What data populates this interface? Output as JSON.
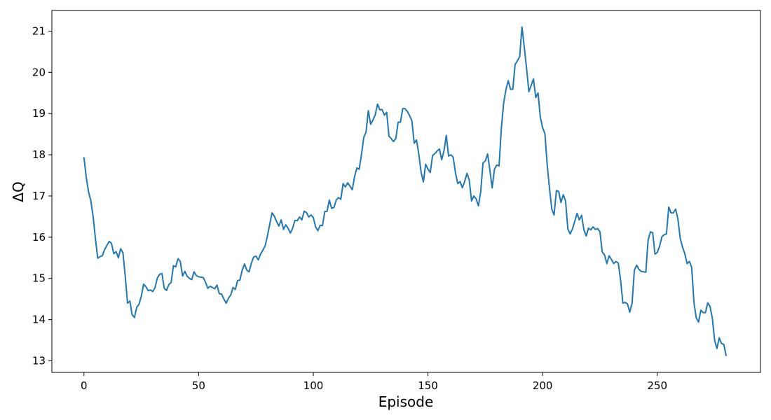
{
  "chart_data": {
    "type": "line",
    "title": "",
    "xlabel": "Episode",
    "ylabel": "ΔQ",
    "xlim": [
      -14,
      295
    ],
    "ylim": [
      12.72,
      21.5
    ],
    "xticks": [
      0,
      50,
      100,
      150,
      200,
      250
    ],
    "yticks": [
      13,
      14,
      15,
      16,
      17,
      18,
      19,
      20,
      21
    ],
    "grid": false,
    "legend": "none",
    "line_color": "#1f77b4",
    "series": [
      {
        "x": [
          0,
          1,
          2,
          3,
          4,
          5,
          6,
          7,
          8,
          9,
          10,
          11,
          12,
          13,
          14,
          15,
          16,
          17,
          18,
          19,
          20,
          21,
          22,
          23,
          24,
          25,
          26,
          27,
          28,
          29,
          30,
          31,
          32,
          33,
          34,
          35,
          36,
          37,
          38,
          39,
          40,
          41,
          42,
          43,
          44,
          45,
          46,
          47,
          48,
          49,
          50,
          51,
          52,
          53,
          54,
          55,
          56,
          57,
          58,
          59,
          60,
          61,
          62,
          63,
          64,
          65,
          66,
          67,
          68,
          69,
          70,
          71,
          72,
          73,
          74,
          75,
          76,
          77,
          78,
          79,
          80,
          81,
          82,
          83,
          84,
          85,
          86,
          87,
          88,
          89,
          90,
          91,
          92,
          93,
          94,
          95,
          96,
          97,
          98,
          99,
          100,
          101,
          102,
          103,
          104,
          105,
          106,
          107,
          108,
          109,
          110,
          111,
          112,
          113,
          114,
          115,
          116,
          117,
          118,
          119,
          120,
          121,
          122,
          123,
          124,
          125,
          126,
          127,
          128,
          129,
          130,
          131,
          132,
          133,
          134,
          135,
          136,
          137,
          138,
          139,
          140,
          141,
          142,
          143,
          144,
          145,
          146,
          147,
          148,
          149,
          150,
          151,
          152,
          153,
          154,
          155,
          156,
          157,
          158,
          159,
          160,
          161,
          162,
          163,
          164,
          165,
          166,
          167,
          168,
          169,
          170,
          171,
          172,
          173,
          174,
          175,
          176,
          177,
          178,
          179,
          180,
          181,
          182,
          183,
          184,
          185,
          186,
          187,
          188,
          189,
          190,
          191,
          192,
          193,
          194,
          195,
          196,
          197,
          198,
          199,
          200,
          201,
          202,
          203,
          204,
          205,
          206,
          207,
          208,
          209,
          210,
          211,
          212,
          213,
          214,
          215,
          216,
          217,
          218,
          219,
          220,
          221,
          222,
          223,
          224,
          225,
          226,
          227,
          228,
          229,
          230,
          231,
          232,
          233,
          234,
          235,
          236,
          237,
          238,
          239,
          240,
          241,
          242,
          243,
          244,
          245,
          246,
          247,
          248,
          249,
          250,
          251,
          252,
          253,
          254,
          255,
          256,
          257,
          258,
          259,
          260,
          261,
          262,
          263,
          264,
          265,
          266,
          267,
          268,
          269,
          270,
          271,
          272,
          273,
          274,
          275,
          276,
          277,
          278,
          279,
          280
        ],
        "y": [
          17.93,
          17.45,
          17.1,
          16.88,
          16.5,
          15.96,
          15.49,
          15.53,
          15.55,
          15.7,
          15.8,
          15.9,
          15.85,
          15.6,
          15.65,
          15.5,
          15.72,
          15.62,
          15.05,
          14.4,
          14.45,
          14.12,
          14.05,
          14.3,
          14.37,
          14.57,
          14.86,
          14.8,
          14.7,
          14.72,
          14.68,
          14.78,
          15.01,
          15.1,
          15.12,
          14.76,
          14.71,
          14.85,
          14.9,
          15.31,
          15.28,
          15.48,
          15.41,
          15.06,
          15.17,
          15.05,
          15.0,
          14.97,
          15.16,
          15.07,
          15.04,
          15.03,
          15.02,
          14.91,
          14.76,
          14.81,
          14.78,
          14.75,
          14.84,
          14.63,
          14.62,
          14.5,
          14.4,
          14.52,
          14.6,
          14.78,
          14.73,
          14.95,
          14.96,
          15.2,
          15.35,
          15.2,
          15.16,
          15.37,
          15.52,
          15.54,
          15.45,
          15.59,
          15.68,
          15.79,
          16.03,
          16.31,
          16.59,
          16.51,
          16.38,
          16.27,
          16.42,
          16.19,
          16.3,
          16.22,
          16.1,
          16.22,
          16.41,
          16.4,
          16.49,
          16.42,
          16.63,
          16.6,
          16.49,
          16.54,
          16.48,
          16.25,
          16.16,
          16.29,
          16.28,
          16.62,
          16.63,
          16.9,
          16.7,
          16.72,
          16.9,
          16.96,
          16.92,
          17.3,
          17.22,
          17.32,
          17.24,
          17.15,
          17.47,
          17.68,
          17.65,
          18.0,
          18.42,
          18.55,
          19.07,
          18.74,
          18.84,
          18.97,
          19.23,
          19.09,
          19.1,
          18.96,
          19.03,
          18.45,
          18.39,
          18.32,
          18.4,
          18.79,
          18.79,
          19.12,
          19.12,
          19.05,
          18.95,
          18.82,
          18.28,
          18.36,
          18.02,
          17.58,
          17.34,
          17.77,
          17.65,
          17.57,
          17.98,
          18.03,
          18.09,
          18.14,
          17.88,
          18.1,
          18.47,
          17.97,
          18.0,
          17.94,
          17.56,
          17.3,
          17.35,
          17.2,
          17.35,
          17.55,
          17.39,
          16.88,
          17.0,
          16.93,
          16.76,
          17.1,
          17.8,
          17.85,
          18.02,
          17.63,
          17.2,
          17.65,
          17.75,
          17.73,
          18.64,
          19.25,
          19.58,
          19.8,
          19.59,
          19.59,
          20.19,
          20.28,
          20.38,
          21.1,
          20.61,
          20.1,
          19.53,
          19.68,
          19.84,
          19.39,
          19.5,
          18.91,
          18.66,
          18.51,
          17.75,
          17.18,
          16.68,
          16.54,
          17.13,
          17.11,
          16.84,
          17.03,
          16.88,
          16.2,
          16.08,
          16.2,
          16.38,
          16.58,
          16.42,
          16.53,
          16.18,
          16.03,
          16.22,
          16.18,
          16.25,
          16.19,
          16.21,
          16.13,
          15.64,
          15.57,
          15.36,
          15.55,
          15.46,
          15.36,
          15.41,
          15.37,
          14.96,
          14.4,
          14.42,
          14.38,
          14.18,
          14.4,
          15.2,
          15.32,
          15.22,
          15.17,
          15.16,
          15.15,
          15.93,
          16.13,
          16.11,
          15.59,
          15.63,
          15.78,
          16.01,
          16.06,
          16.08,
          16.73,
          16.59,
          16.59,
          16.68,
          16.44,
          15.97,
          15.76,
          15.6,
          15.36,
          15.41,
          15.27,
          14.41,
          14.04,
          13.94,
          14.23,
          14.17,
          14.17,
          14.41,
          14.32,
          14.04,
          13.5,
          13.3,
          13.56,
          13.42,
          13.4,
          13.13
        ]
      }
    ]
  }
}
